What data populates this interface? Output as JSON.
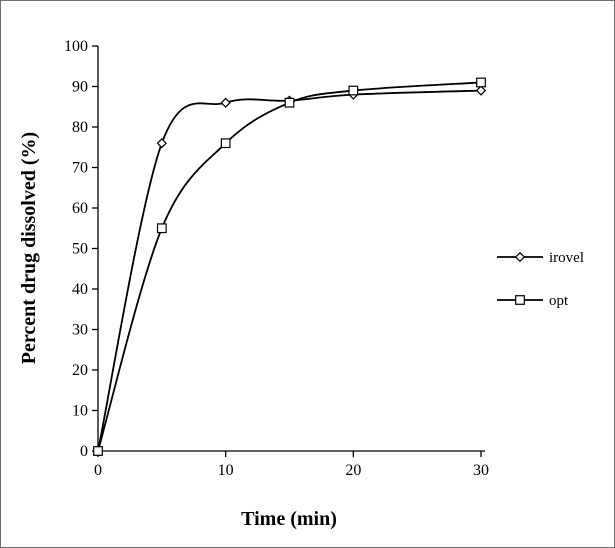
{
  "chart_data": {
    "type": "line",
    "title": "",
    "xlabel": "Time (min)",
    "ylabel": "Percent drug dissolved (%)",
    "xlim": [
      0,
      30
    ],
    "ylim": [
      0,
      100
    ],
    "x_ticks": [
      0,
      10,
      20,
      30
    ],
    "y_ticks": [
      0,
      10,
      20,
      30,
      40,
      50,
      60,
      70,
      80,
      90,
      100
    ],
    "grid": "off",
    "legend_position": "right",
    "line_color": "#000000",
    "background_color": "#ffffff",
    "x": [
      0,
      5,
      10,
      15,
      20,
      30
    ],
    "series": [
      {
        "name": "irovel",
        "marker": "diamond",
        "values": [
          0,
          76,
          86,
          86.5,
          88,
          89
        ]
      },
      {
        "name": "opt",
        "marker": "square",
        "values": [
          0,
          55,
          76,
          86,
          89,
          91
        ]
      }
    ]
  }
}
